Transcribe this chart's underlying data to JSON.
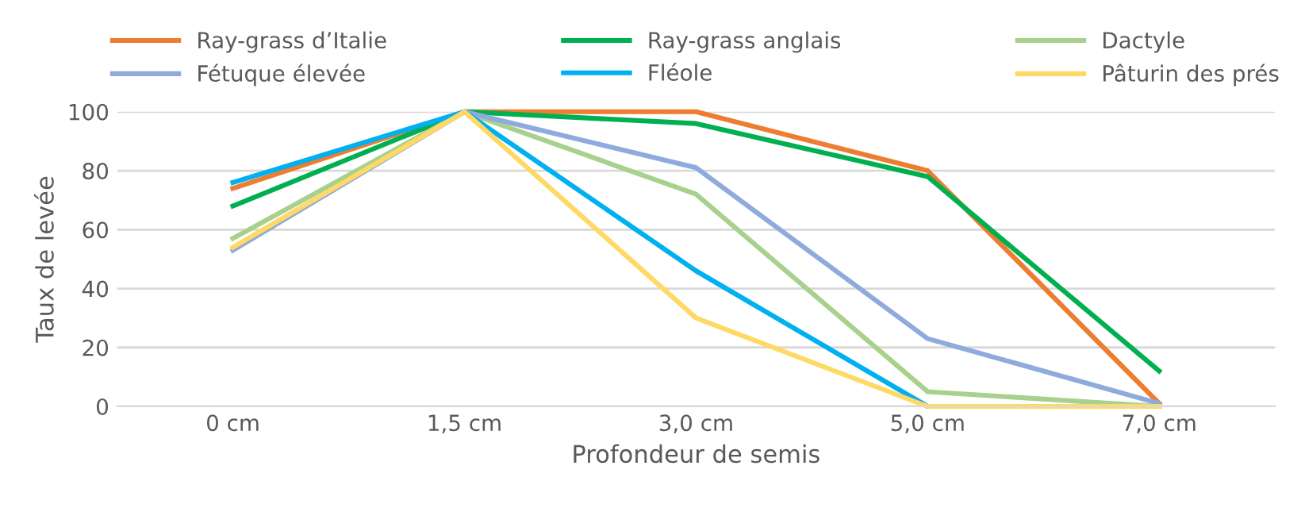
{
  "chart_data": {
    "type": "line",
    "xlabel": "Profondeur de semis",
    "ylabel": "Taux de levée",
    "categories": [
      "0 cm",
      "1,5 cm",
      "3,0 cm",
      "5,0 cm",
      "7,0 cm"
    ],
    "series": [
      {
        "name": "Ray-grass d’Italie",
        "color": "#ed7d31",
        "values": [
          74,
          100,
          100,
          80,
          1
        ]
      },
      {
        "name": "Ray-grass anglais",
        "color": "#00b050",
        "values": [
          68,
          100,
          96,
          78,
          12
        ]
      },
      {
        "name": "Dactyle",
        "color": "#a9d18e",
        "values": [
          57,
          100,
          72,
          5,
          0
        ]
      },
      {
        "name": "Fétuque élevée",
        "color": "#8faadc",
        "values": [
          53,
          100,
          81,
          23,
          1
        ]
      },
      {
        "name": "Fléole",
        "color": "#00b0f0",
        "values": [
          76,
          100,
          46,
          0,
          0
        ]
      },
      {
        "name": "Pâturin des prés",
        "color": "#ffd966",
        "values": [
          54,
          100,
          30,
          0,
          0
        ]
      }
    ],
    "ylim": [
      0,
      100
    ],
    "yticks": [
      0,
      20,
      40,
      60,
      80,
      100
    ],
    "grid": "y",
    "legend": "top",
    "marker": "none",
    "line_style": "solid"
  }
}
